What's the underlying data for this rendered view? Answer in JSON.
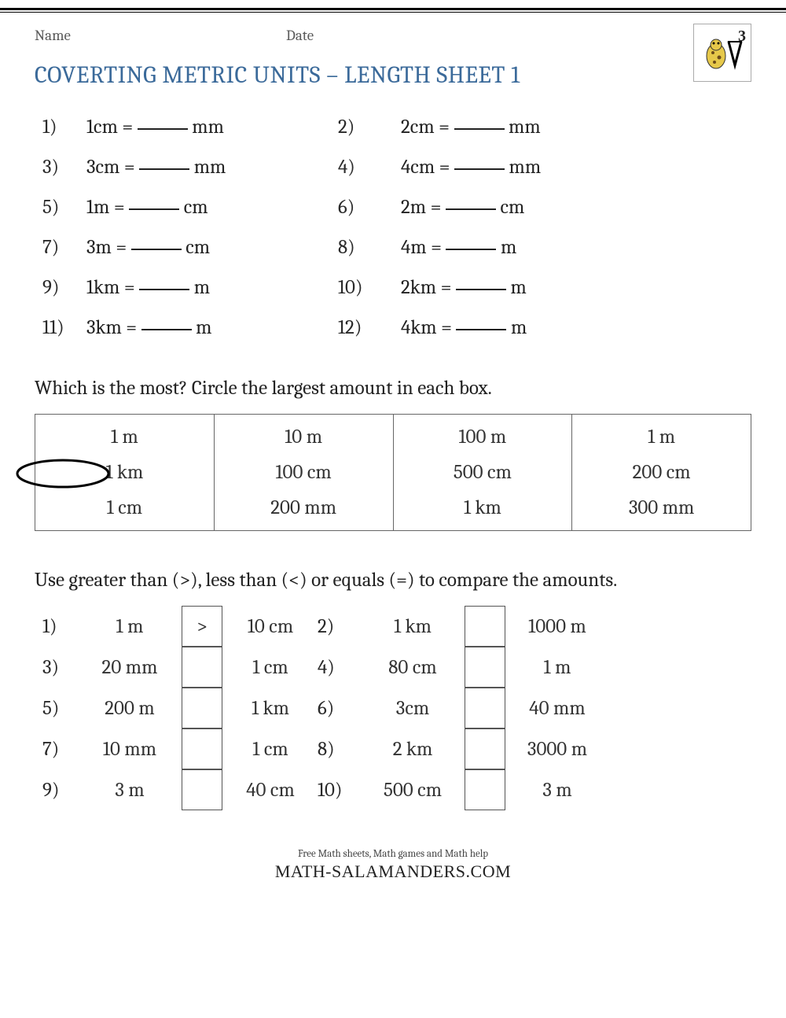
{
  "header": {
    "name_label": "Name",
    "date_label": "Date",
    "grade": "3"
  },
  "title": "COVERTING METRIC UNITS – LENGTH SHEET 1",
  "colors": {
    "title": "#3b6a9a",
    "text": "#222222",
    "header_text": "#5a5a5a",
    "border": "#555555",
    "background": "#ffffff"
  },
  "typography": {
    "title_fontsize": 30.5,
    "body_fontsize": 25,
    "header_fontsize": 19,
    "footer_small_fontsize": 13,
    "footer_brand_fontsize": 22,
    "font_family": "Cambria / serif"
  },
  "conversion_questions": [
    {
      "n": "1)",
      "lhs": "1cm",
      "unit": "mm"
    },
    {
      "n": "2)",
      "lhs": "2cm",
      "unit": "mm"
    },
    {
      "n": "3)",
      "lhs": "3cm",
      "unit": "mm"
    },
    {
      "n": "4)",
      "lhs": "4cm",
      "unit": "mm"
    },
    {
      "n": "5)",
      "lhs": "1m",
      "unit": "cm"
    },
    {
      "n": "6)",
      "lhs": "2m",
      "unit": "cm"
    },
    {
      "n": "7)",
      "lhs": "3m",
      "unit": "cm"
    },
    {
      "n": "8)",
      "lhs": "4m",
      "unit": "m"
    },
    {
      "n": "9)",
      "lhs": "1km",
      "unit": "m"
    },
    {
      "n": "10)",
      "lhs": "2km",
      "unit": "m"
    },
    {
      "n": "11)",
      "lhs": "3km",
      "unit": "m"
    },
    {
      "n": "12)",
      "lhs": "4km",
      "unit": "m"
    }
  ],
  "section2_prompt": "Which is the most? Circle the largest amount in each box.",
  "box_table": {
    "columns": 4,
    "rows": 3,
    "cells": [
      [
        "1 m",
        "10 m",
        "100 m",
        "1 m"
      ],
      [
        "1 km",
        "100 cm",
        "500 cm",
        "200 cm"
      ],
      [
        "1 cm",
        "200 mm",
        "1 km",
        "300 mm"
      ]
    ],
    "circled": {
      "row": 1,
      "col": 0
    }
  },
  "section3_prompt": "Use greater than (>), less than (<) or equals (=) to compare the amounts.",
  "compare_questions": [
    {
      "n": "1)",
      "left": "1 m",
      "op": ">",
      "right": "10 cm"
    },
    {
      "n": "2)",
      "left": "1 km",
      "op": "",
      "right": "1000 m"
    },
    {
      "n": "3)",
      "left": "20 mm",
      "op": "",
      "right": "1 cm"
    },
    {
      "n": "4)",
      "left": "80 cm",
      "op": "",
      "right": "1 m"
    },
    {
      "n": "5)",
      "left": "200 m",
      "op": "",
      "right": "1 km"
    },
    {
      "n": "6)",
      "left": "3cm",
      "op": "",
      "right": "40 mm"
    },
    {
      "n": "7)",
      "left": "10 mm",
      "op": "",
      "right": "1 cm"
    },
    {
      "n": "8)",
      "left": "2 km",
      "op": "",
      "right": "3000 m"
    },
    {
      "n": "9)",
      "left": "3 m",
      "op": "",
      "right": "40 cm"
    },
    {
      "n": "10)",
      "left": "500 cm",
      "op": "",
      "right": "3 m"
    }
  ],
  "footer": {
    "tagline": "Free Math sheets, Math games and Math help",
    "brand": "MATH-SALAMANDERS.COM"
  }
}
